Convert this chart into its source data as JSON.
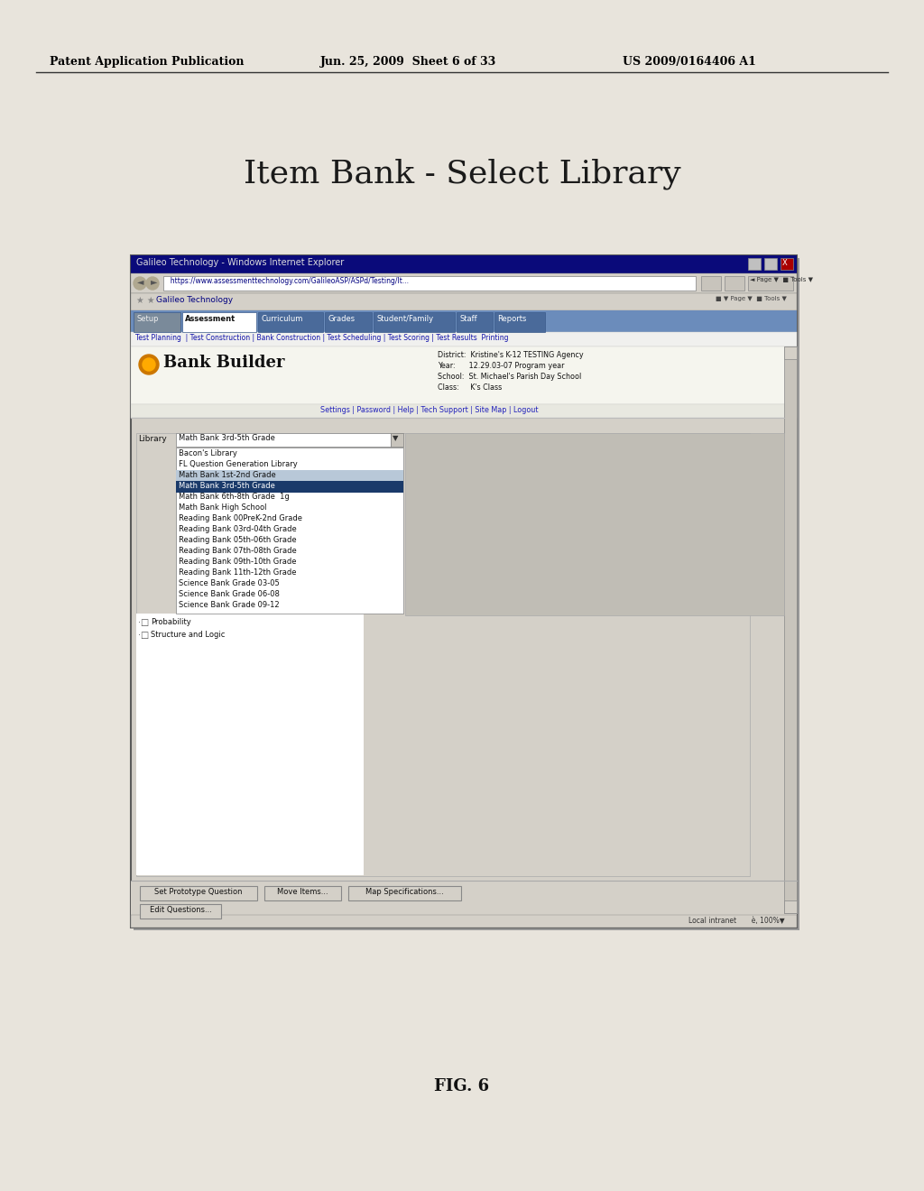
{
  "page_bg": "#e8e4dc",
  "header_left": "Patent Application Publication",
  "header_mid": "Jun. 25, 2009  Sheet 6 of 33",
  "header_right": "US 2009/0164406 A1",
  "title": "Item Bank - Select Library",
  "fig_label": "FIG. 6",
  "browser_title": "Galileo Technology - Windows Internet Explorer",
  "url_bar": "  https://www.assessmenttechnology.com/GalileoASP/ASPd/Testing/It...",
  "favorites_bar": "Galileo Technology",
  "nav_tabs": [
    "Setup",
    "Assessment",
    "Curriculum",
    "Grades",
    "Student/Family",
    "Staff",
    "Reports"
  ],
  "sub_nav": "Test Planning  | Test Construction | Bank Construction | Test Scheduling | Test Scoring | Test Results  Printing",
  "app_name": "Bank Builder",
  "district_info": "District:  Kristine's K-12 TESTING Agency\nYear:      12.29.03-07 Program year\nSchool:  St. Michael's Parish Day School\nClass:     K's Class",
  "settings_bar": "Settings | Password | Help | Tech Support | Site Map | Logout",
  "library_label": "Library",
  "library_value": "Math Bank 3rd-5th Grade",
  "dropdown_items": [
    "Bacon's Library",
    "FL Question Generation Library",
    "Math Bank 1st-2nd Grade",
    "Math Bank 3rd-5th Grade",
    "Math Bank 6th-8th Grade  1g",
    "Math Bank High School",
    "Reading Bank 00PreK-2nd Grade",
    "Reading Bank 03rd-04th Grade",
    "Reading Bank 05th-06th Grade",
    "Reading Bank 07th-08th Grade",
    "Reading Bank 09th-10th Grade",
    "Reading Bank 11th-12th Grade",
    "Science Bank Grade 03-05",
    "Science Bank Grade 06-08",
    "Science Bank Grade 09-12"
  ],
  "tree_items": [
    "Probability",
    "Structure and Logic"
  ],
  "bottom_buttons": [
    "Set Prototype Question",
    "Move Items...",
    "Map Specifications..."
  ],
  "bottom_buttons2": [
    "Edit Questions..."
  ]
}
